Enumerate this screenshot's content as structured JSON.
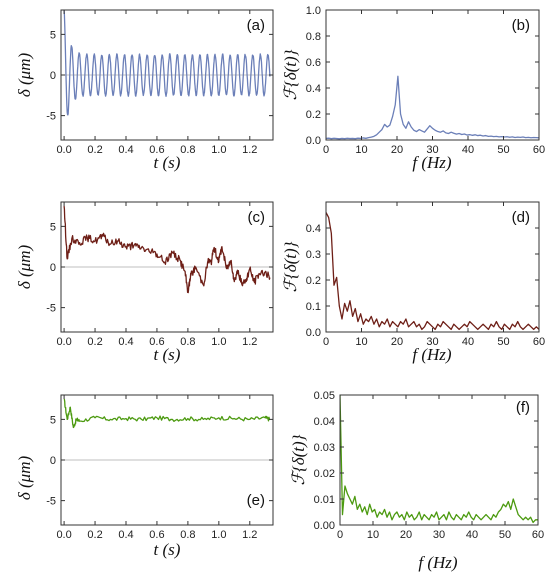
{
  "chart_data": [
    {
      "id": "a",
      "type": "line",
      "panel_label": "(a)",
      "xlabel": "t (s)",
      "ylabel": "δ (μm)",
      "xlim": [
        -0.02,
        1.35
      ],
      "ylim": [
        -8,
        8
      ],
      "xticks": [
        0.0,
        0.2,
        0.4,
        0.6,
        0.8,
        1.0,
        1.2
      ],
      "xtick_labels": [
        "0.0",
        "0.2",
        "0.4",
        "0.6",
        "0.8",
        "1.0",
        "1.2"
      ],
      "yticks": [
        5,
        0,
        -5
      ],
      "ytick_labels": [
        "5",
        "0",
        "-5"
      ],
      "zero_line": true,
      "color": "#6b7fb8",
      "signal": {
        "duration": 1.33,
        "samples": 660,
        "initial_amplitude": 8,
        "steady_amplitude": 2.5,
        "decay_time": 0.03,
        "frequency": 20.5,
        "noise": 0.25
      }
    },
    {
      "id": "b",
      "type": "line",
      "panel_label": "(b)",
      "xlabel": "f (Hz)",
      "ylabel": "ℱ{δ(t)}",
      "xlim": [
        0,
        60
      ],
      "ylim": [
        0,
        1.0
      ],
      "xticks": [
        0,
        10,
        20,
        30,
        40,
        50,
        60
      ],
      "xtick_labels": [
        "0",
        "10",
        "20",
        "30",
        "40",
        "50",
        "60"
      ],
      "yticks": [
        0.0,
        0.2,
        0.4,
        0.6,
        0.8,
        1.0
      ],
      "ytick_labels": [
        "0.0",
        "0.2",
        "0.4",
        "0.6",
        "0.8",
        "1.0"
      ],
      "color": "#6b7fb8",
      "x": [
        0,
        0.75,
        1.5,
        2.25,
        3,
        3.75,
        4.5,
        5.25,
        6,
        6.75,
        7.5,
        8.25,
        9,
        9.75,
        10.5,
        11.25,
        12,
        12.75,
        13.5,
        14.25,
        15,
        15.75,
        16.5,
        17.25,
        18,
        18.75,
        19.5,
        20.25,
        21,
        21.75,
        22.5,
        23.25,
        24,
        24.75,
        25.5,
        26.25,
        27,
        27.75,
        28.5,
        29.25,
        30,
        30.75,
        31.5,
        32.25,
        33,
        33.75,
        34.5,
        35.25,
        36,
        36.75,
        37.5,
        38.25,
        39,
        39.75,
        40.5,
        41.25,
        42,
        42.75,
        43.5,
        44.25,
        45,
        45.75,
        46.5,
        47.25,
        48,
        48.75,
        49.5,
        50.25,
        51,
        51.75,
        52.5,
        53.25,
        54,
        54.75,
        55.5,
        56.25,
        57,
        57.75,
        58.5,
        59.25,
        60
      ],
      "y": [
        0.012,
        0.014,
        0.01,
        0.013,
        0.011,
        0.009,
        0.012,
        0.01,
        0.013,
        0.011,
        0.012,
        0.01,
        0.014,
        0.012,
        0.016,
        0.013,
        0.018,
        0.022,
        0.028,
        0.04,
        0.06,
        0.08,
        0.12,
        0.1,
        0.115,
        0.18,
        0.27,
        0.49,
        0.2,
        0.12,
        0.09,
        0.14,
        0.1,
        0.075,
        0.065,
        0.08,
        0.07,
        0.06,
        0.085,
        0.11,
        0.09,
        0.075,
        0.065,
        0.06,
        0.07,
        0.055,
        0.05,
        0.06,
        0.052,
        0.045,
        0.05,
        0.042,
        0.046,
        0.038,
        0.041,
        0.036,
        0.04,
        0.034,
        0.037,
        0.031,
        0.034,
        0.028,
        0.03,
        0.026,
        0.028,
        0.024,
        0.026,
        0.023,
        0.025,
        0.021,
        0.024,
        0.019,
        0.022,
        0.02,
        0.023,
        0.018,
        0.02,
        0.017,
        0.019,
        0.018,
        0.017
      ]
    },
    {
      "id": "c",
      "type": "line",
      "panel_label": "(c)",
      "xlabel": "t (s)",
      "ylabel": "δ (μm)",
      "xlim": [
        -0.02,
        1.35
      ],
      "ylim": [
        -8,
        8
      ],
      "xticks": [
        0.0,
        0.2,
        0.4,
        0.6,
        0.8,
        1.0,
        1.2
      ],
      "xtick_labels": [
        "0.0",
        "0.2",
        "0.4",
        "0.6",
        "0.8",
        "1.0",
        "1.2"
      ],
      "yticks": [
        5,
        0,
        -5
      ],
      "ytick_labels": [
        "5",
        "0",
        "-5"
      ],
      "zero_line": true,
      "color": "#6e1f17",
      "x": [
        0.0,
        0.02,
        0.05,
        0.1,
        0.15,
        0.2,
        0.25,
        0.3,
        0.35,
        0.4,
        0.45,
        0.5,
        0.55,
        0.6,
        0.65,
        0.7,
        0.75,
        0.78,
        0.8,
        0.82,
        0.85,
        0.9,
        0.93,
        0.95,
        0.97,
        1.0,
        1.02,
        1.05,
        1.08,
        1.1,
        1.12,
        1.15,
        1.18,
        1.2,
        1.23,
        1.26,
        1.3,
        1.33
      ],
      "y": [
        7.5,
        1.0,
        3.5,
        3.0,
        3.6,
        3.2,
        3.8,
        2.8,
        3.2,
        2.5,
        2.6,
        2.4,
        1.9,
        1.6,
        0.6,
        1.8,
        0.8,
        -0.5,
        -3.0,
        -1.0,
        0.0,
        -2.2,
        0.8,
        0.5,
        2.4,
        0.7,
        2.5,
        -0.2,
        0.8,
        -1.8,
        -0.4,
        -2.2,
        -1.4,
        -0.2,
        -1.9,
        -0.8,
        -0.6,
        -1.3
      ],
      "noise": 0.45
    },
    {
      "id": "d",
      "type": "line",
      "panel_label": "(d)",
      "xlabel": "f (Hz)",
      "ylabel": "ℱ{δ(t)}",
      "xlim": [
        0,
        60
      ],
      "ylim": [
        0,
        0.5
      ],
      "xticks": [
        0,
        10,
        20,
        30,
        40,
        50,
        60
      ],
      "xtick_labels": [
        "0",
        "10",
        "20",
        "30",
        "40",
        "50",
        "60"
      ],
      "yticks": [
        0.0,
        0.1,
        0.2,
        0.3,
        0.4
      ],
      "ytick_labels": [
        "0.0",
        "0.1",
        "0.2",
        "0.3",
        "0.4"
      ],
      "color": "#6e1f17",
      "x": [
        0,
        0.75,
        1.5,
        2.25,
        3,
        3.75,
        4.5,
        5.25,
        6,
        6.75,
        7.5,
        8.25,
        9,
        9.75,
        10.5,
        11.25,
        12,
        12.75,
        13.5,
        14.25,
        15,
        15.75,
        16.5,
        17.25,
        18,
        18.75,
        19.5,
        20.25,
        21,
        21.75,
        22.5,
        23.25,
        24,
        24.75,
        25.5,
        26.25,
        27,
        27.75,
        28.5,
        29.25,
        30,
        30.75,
        31.5,
        32.25,
        33,
        33.75,
        34.5,
        35.25,
        36,
        36.75,
        37.5,
        38.25,
        39,
        39.75,
        40.5,
        41.25,
        42,
        42.75,
        43.5,
        44.25,
        45,
        45.75,
        46.5,
        47.25,
        48,
        48.75,
        49.5,
        50.25,
        51,
        51.75,
        52.5,
        53.25,
        54,
        54.75,
        55.5,
        56.25,
        57,
        57.75,
        58.5,
        59.25,
        60
      ],
      "y": [
        0.46,
        0.44,
        0.38,
        0.18,
        0.21,
        0.1,
        0.05,
        0.11,
        0.08,
        0.12,
        0.06,
        0.09,
        0.04,
        0.07,
        0.03,
        0.05,
        0.04,
        0.06,
        0.03,
        0.05,
        0.02,
        0.04,
        0.03,
        0.05,
        0.02,
        0.04,
        0.03,
        0.02,
        0.04,
        0.03,
        0.05,
        0.02,
        0.03,
        0.04,
        0.02,
        0.03,
        0.01,
        0.02,
        0.04,
        0.03,
        0.02,
        0.01,
        0.03,
        0.02,
        0.04,
        0.03,
        0.02,
        0.01,
        0.03,
        0.02,
        0.01,
        0.02,
        0.03,
        0.02,
        0.04,
        0.03,
        0.02,
        0.01,
        0.02,
        0.03,
        0.02,
        0.01,
        0.03,
        0.02,
        0.04,
        0.02,
        0.01,
        0.03,
        0.02,
        0.01,
        0.03,
        0.02,
        0.04,
        0.02,
        0.01,
        0.02,
        0.03,
        0.02,
        0.01,
        0.02,
        0.01
      ]
    },
    {
      "id": "e",
      "type": "line",
      "panel_label": "(e)",
      "xlabel": "t (s)",
      "ylabel": "δ (μm)",
      "xlim": [
        -0.02,
        1.35
      ],
      "ylim": [
        -8,
        8
      ],
      "xticks": [
        0.0,
        0.2,
        0.4,
        0.6,
        0.8,
        1.0,
        1.2
      ],
      "xtick_labels": [
        "0.0",
        "0.2",
        "0.4",
        "0.6",
        "0.8",
        "1.0",
        "1.2"
      ],
      "yticks": [
        5,
        0,
        -5
      ],
      "ytick_labels": [
        "5",
        "0",
        "-5"
      ],
      "zero_line": true,
      "color": "#4c9a10",
      "x": [
        0.0,
        0.02,
        0.04,
        0.06,
        0.08,
        0.1,
        0.2,
        0.3,
        0.4,
        0.5,
        0.6,
        0.7,
        0.8,
        0.9,
        1.0,
        1.1,
        1.2,
        1.3,
        1.33
      ],
      "y": [
        7.5,
        5.0,
        6.5,
        4.0,
        5.0,
        4.8,
        5.2,
        5.0,
        5.1,
        5.0,
        5.2,
        5.0,
        5.1,
        5.0,
        5.2,
        5.1,
        5.0,
        5.2,
        5.0
      ],
      "noise": 0.25
    },
    {
      "id": "f",
      "type": "line",
      "panel_label": "(f)",
      "xlabel": "f (Hz)",
      "ylabel": "ℱ{δ(t)}",
      "xlim": [
        0,
        60
      ],
      "ylim": [
        0,
        0.05
      ],
      "xticks": [
        0,
        10,
        20,
        30,
        40,
        50,
        60
      ],
      "xtick_labels": [
        "0",
        "10",
        "20",
        "30",
        "40",
        "50",
        "60"
      ],
      "yticks": [
        0.0,
        0.01,
        0.02,
        0.03,
        0.04,
        0.05
      ],
      "ytick_labels": [
        "0.00",
        "0.01",
        "0.02",
        "0.03",
        "0.04",
        "0.05"
      ],
      "color": "#4c9a10",
      "x": [
        0,
        0.75,
        1.5,
        2.25,
        3,
        3.75,
        4.5,
        5.25,
        6,
        6.75,
        7.5,
        8.25,
        9,
        9.75,
        10.5,
        11.25,
        12,
        12.75,
        13.5,
        14.25,
        15,
        15.75,
        16.5,
        17.25,
        18,
        18.75,
        19.5,
        20.25,
        21,
        21.75,
        22.5,
        23.25,
        24,
        24.75,
        25.5,
        26.25,
        27,
        27.75,
        28.5,
        29.25,
        30,
        30.75,
        31.5,
        32.25,
        33,
        33.75,
        34.5,
        35.25,
        36,
        36.75,
        37.5,
        38.25,
        39,
        39.75,
        40.5,
        41.25,
        42,
        42.75,
        43.5,
        44.25,
        45,
        45.75,
        46.5,
        47.25,
        48,
        48.75,
        49.5,
        50.25,
        51,
        51.75,
        52.5,
        53.25,
        54,
        54.75,
        55.5,
        56.25,
        57,
        57.75,
        58.5,
        59.25,
        60
      ],
      "y": [
        0.05,
        0.004,
        0.015,
        0.012,
        0.01,
        0.008,
        0.011,
        0.006,
        0.008,
        0.005,
        0.007,
        0.004,
        0.008,
        0.005,
        0.006,
        0.003,
        0.005,
        0.004,
        0.006,
        0.003,
        0.005,
        0.002,
        0.004,
        0.005,
        0.003,
        0.004,
        0.002,
        0.005,
        0.003,
        0.004,
        0.002,
        0.003,
        0.005,
        0.002,
        0.004,
        0.003,
        0.002,
        0.004,
        0.003,
        0.005,
        0.002,
        0.003,
        0.004,
        0.002,
        0.005,
        0.003,
        0.002,
        0.004,
        0.003,
        0.002,
        0.004,
        0.003,
        0.005,
        0.003,
        0.002,
        0.004,
        0.003,
        0.002,
        0.003,
        0.004,
        0.003,
        0.002,
        0.004,
        0.003,
        0.005,
        0.006,
        0.008,
        0.007,
        0.009,
        0.006,
        0.01,
        0.007,
        0.004,
        0.003,
        0.002,
        0.003,
        0.002,
        0.003,
        0.001,
        0.002,
        0.002
      ]
    }
  ]
}
